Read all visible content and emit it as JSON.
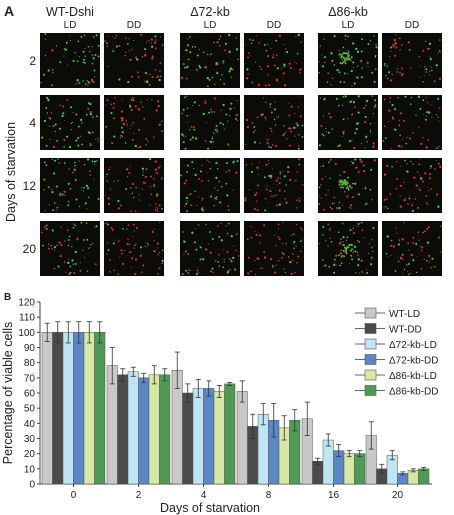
{
  "panel_a": {
    "letter": "A",
    "y_label": "Days of starvation",
    "strains": [
      {
        "name": "WT-Dshi",
        "conditions": [
          "LD",
          "DD"
        ]
      },
      {
        "name": "Δ72-kb",
        "conditions": [
          "LD",
          "DD"
        ]
      },
      {
        "name": "Δ86-kb",
        "conditions": [
          "LD",
          "DD"
        ]
      }
    ],
    "days": [
      "2",
      "4",
      "12",
      "20"
    ],
    "colors": {
      "live": "#3fd23a",
      "dead": "#d8352c",
      "background": "#0b0b08"
    }
  },
  "chart_data": {
    "type": "bar",
    "panel_letter": "B",
    "categories": [
      "0",
      "2",
      "4",
      "8",
      "16",
      "20"
    ],
    "xlabel": "Days of starvation",
    "ylabel": "Percentage of viable cells",
    "ylim": [
      0,
      120
    ],
    "yticks": [
      0,
      10,
      20,
      30,
      40,
      50,
      60,
      70,
      80,
      90,
      100,
      110,
      120
    ],
    "grid": false,
    "legend_position": "right",
    "series": [
      {
        "name": "WT-LD",
        "color": "#c8c8c8",
        "values": [
          100,
          78,
          75,
          61,
          43,
          32
        ],
        "errors": [
          6,
          12,
          12,
          7,
          11,
          9
        ]
      },
      {
        "name": "WT-DD",
        "color": "#4b4b4b",
        "values": [
          100,
          72,
          60,
          38,
          15,
          10
        ],
        "errors": [
          7,
          4,
          6,
          8,
          2,
          3
        ]
      },
      {
        "name": "Δ72-kb-LD",
        "color": "#bfe4f3",
        "values": [
          100,
          74,
          63,
          46,
          29,
          19
        ],
        "errors": [
          7,
          3,
          6,
          7,
          4,
          3
        ]
      },
      {
        "name": "Δ72-kb-DD",
        "color": "#5b87c9",
        "values": [
          100,
          70,
          63,
          42,
          22,
          7
        ],
        "errors": [
          7,
          3,
          5,
          11,
          4,
          1
        ]
      },
      {
        "name": "Δ86-kb-LD",
        "color": "#d7e8a4",
        "values": [
          100,
          72,
          61,
          37,
          20,
          9
        ],
        "errors": [
          7,
          6,
          4,
          8,
          2,
          1
        ]
      },
      {
        "name": "Δ86-kb-DD",
        "color": "#4f9a55",
        "values": [
          100,
          72,
          66,
          42,
          20,
          10
        ],
        "errors": [
          7,
          4,
          1,
          7,
          2,
          1
        ]
      }
    ]
  }
}
